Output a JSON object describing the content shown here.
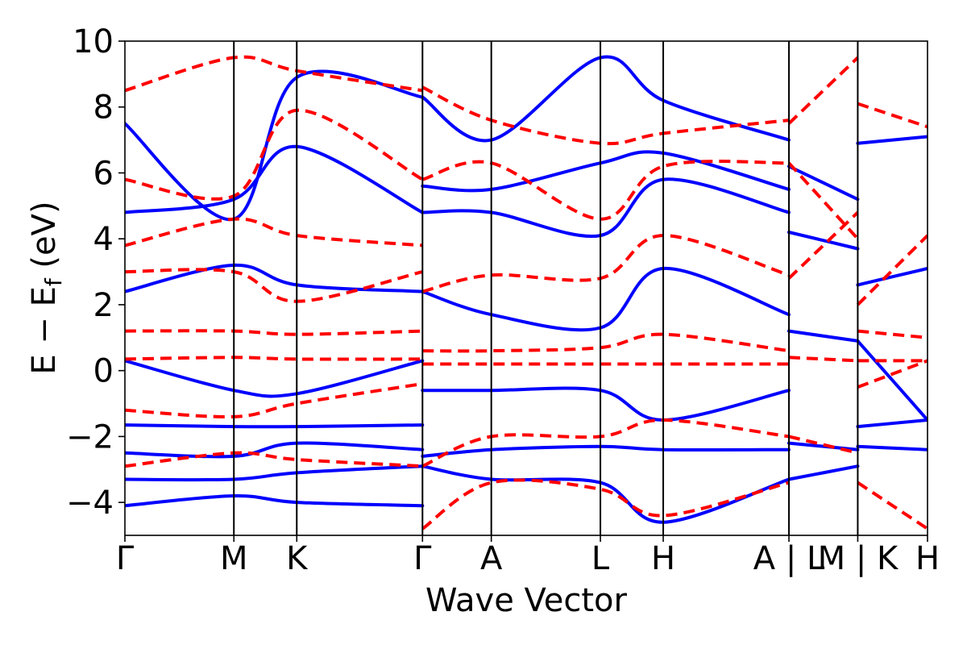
{
  "chart_data": {
    "type": "line",
    "title": "",
    "xlabel": "Wave Vector",
    "ylabel": "E − E",
    "ylabel_subscript": "f",
    "ylabel_unit": " (eV)",
    "ylim": [
      -5,
      10
    ],
    "yticks": [
      -4,
      -2,
      0,
      2,
      4,
      6,
      8,
      10
    ],
    "ytick_labels": [
      "−4",
      "−2",
      "0",
      "2",
      "4",
      "6",
      "8",
      "10"
    ],
    "kpath_labels": [
      "Γ",
      "M",
      "K",
      "Γ",
      "A",
      "L",
      "H",
      "A | L",
      "M | K",
      "H"
    ],
    "kpath_ticks": [
      0,
      1.587,
      2.503,
      4.334,
      5.336,
      6.925,
      7.84,
      9.671,
      10.673,
      11.689
    ],
    "xlim": [
      0,
      11.689
    ],
    "segment_breaks": [
      9.671,
      10.673
    ],
    "grid": false,
    "series": [
      {
        "style": "solid",
        "color": "#0000ff",
        "bands": [
          {
            "x": [
              0,
              1.587,
              2.503,
              4.334
            ],
            "y": [
              -4.1,
              -3.8,
              -4.0,
              -4.1
            ]
          },
          {
            "x": [
              0,
              1.587,
              2.503,
              4.334
            ],
            "y": [
              -3.3,
              -3.3,
              -3.1,
              -2.9
            ]
          },
          {
            "x": [
              0,
              1.587,
              2.503,
              4.334
            ],
            "y": [
              -2.5,
              -2.6,
              -2.2,
              -2.4
            ]
          },
          {
            "x": [
              0,
              1.587,
              2.503,
              4.334
            ],
            "y": [
              -1.65,
              -1.7,
              -1.7,
              -1.65
            ]
          },
          {
            "x": [
              0,
              1.587,
              2.503,
              4.334
            ],
            "y": [
              0.3,
              -0.6,
              -0.7,
              0.3
            ]
          },
          {
            "x": [
              0,
              1.587,
              2.503,
              4.334
            ],
            "y": [
              2.4,
              3.2,
              2.6,
              2.4
            ]
          },
          {
            "x": [
              0,
              1.587,
              2.503,
              4.334
            ],
            "y": [
              4.8,
              5.2,
              6.8,
              4.8
            ]
          },
          {
            "x": [
              0,
              1.587,
              2.503,
              4.334
            ],
            "y": [
              7.5,
              4.6,
              8.9,
              8.3
            ]
          },
          {
            "x": [
              4.334,
              5.336,
              6.925,
              7.84,
              9.671
            ],
            "y": [
              2.4,
              1.7,
              1.3,
              3.1,
              1.7
            ]
          },
          {
            "x": [
              4.334,
              5.336,
              6.925,
              7.84,
              9.671
            ],
            "y": [
              -0.6,
              -0.6,
              -0.6,
              -1.5,
              -0.6
            ]
          },
          {
            "x": [
              4.334,
              5.336,
              6.925,
              7.84,
              9.671
            ],
            "y": [
              -2.9,
              -3.3,
              -3.4,
              -4.6,
              -3.3
            ]
          },
          {
            "x": [
              4.334,
              5.336,
              6.925,
              7.84,
              9.671
            ],
            "y": [
              -2.6,
              -2.4,
              -2.3,
              -2.4,
              -2.4
            ]
          },
          {
            "x": [
              4.334,
              5.336,
              6.925,
              7.84,
              9.671
            ],
            "y": [
              4.8,
              4.8,
              4.1,
              5.8,
              4.8
            ]
          },
          {
            "x": [
              4.334,
              5.336,
              6.925,
              7.84,
              9.671
            ],
            "y": [
              5.6,
              5.5,
              6.3,
              6.6,
              5.5
            ]
          },
          {
            "x": [
              4.334,
              5.336,
              6.925,
              7.84,
              9.671
            ],
            "y": [
              8.3,
              7.0,
              9.5,
              8.2,
              7.0
            ]
          },
          {
            "x": [
              9.671,
              10.673
            ],
            "y": [
              1.2,
              0.9
            ]
          },
          {
            "x": [
              9.671,
              10.673
            ],
            "y": [
              4.2,
              3.7
            ]
          },
          {
            "x": [
              9.671,
              10.673
            ],
            "y": [
              6.2,
              5.2
            ]
          },
          {
            "x": [
              9.671,
              10.673
            ],
            "y": [
              -2.2,
              -2.4
            ]
          },
          {
            "x": [
              9.671,
              10.673
            ],
            "y": [
              -3.3,
              -2.9
            ]
          },
          {
            "x": [
              10.673,
              11.689
            ],
            "y": [
              2.6,
              3.1
            ]
          },
          {
            "x": [
              10.673,
              11.689
            ],
            "y": [
              0.9,
              -1.5
            ]
          },
          {
            "x": [
              10.673,
              11.689
            ],
            "y": [
              -1.7,
              -1.5
            ]
          },
          {
            "x": [
              10.673,
              11.689
            ],
            "y": [
              -2.3,
              -2.4
            ]
          },
          {
            "x": [
              10.673,
              11.689
            ],
            "y": [
              6.9,
              7.1
            ]
          }
        ]
      },
      {
        "style": "dashed",
        "color": "#ff0000",
        "bands": [
          {
            "x": [
              0,
              1.587,
              2.503,
              4.334
            ],
            "y": [
              1.2,
              1.2,
              1.1,
              1.2
            ]
          },
          {
            "x": [
              0,
              1.587,
              2.503,
              4.334
            ],
            "y": [
              0.35,
              0.4,
              0.35,
              0.35
            ]
          },
          {
            "x": [
              0,
              1.587,
              2.503,
              4.334
            ],
            "y": [
              3.0,
              3.0,
              2.1,
              3.0
            ]
          },
          {
            "x": [
              0,
              1.587,
              2.503,
              4.334
            ],
            "y": [
              3.8,
              4.6,
              4.1,
              3.8
            ]
          },
          {
            "x": [
              0,
              1.587,
              2.503,
              4.334
            ],
            "y": [
              5.8,
              5.3,
              7.9,
              5.8
            ]
          },
          {
            "x": [
              0,
              1.587,
              2.503,
              4.334
            ],
            "y": [
              -1.2,
              -1.4,
              -1.0,
              -0.4
            ]
          },
          {
            "x": [
              0,
              1.587,
              2.503,
              4.334
            ],
            "y": [
              -2.9,
              -2.5,
              -2.7,
              -2.9
            ]
          },
          {
            "x": [
              0,
              1.587,
              2.503,
              4.334
            ],
            "y": [
              8.5,
              9.5,
              9.1,
              8.5
            ]
          },
          {
            "x": [
              4.334,
              5.336,
              6.925,
              7.84,
              9.671
            ],
            "y": [
              0.2,
              0.2,
              0.2,
              0.2,
              0.2
            ]
          },
          {
            "x": [
              4.334,
              5.336,
              6.925,
              7.84,
              9.671
            ],
            "y": [
              0.6,
              0.6,
              0.7,
              1.1,
              0.6
            ]
          },
          {
            "x": [
              4.334,
              5.336,
              6.925,
              7.84,
              9.671
            ],
            "y": [
              2.4,
              2.9,
              2.8,
              4.1,
              2.9
            ]
          },
          {
            "x": [
              4.334,
              5.336,
              6.925,
              7.84,
              9.671
            ],
            "y": [
              -2.9,
              -2.0,
              -2.0,
              -1.5,
              -2.0
            ]
          },
          {
            "x": [
              4.334,
              5.336,
              6.925,
              7.84,
              9.671
            ],
            "y": [
              5.8,
              6.3,
              4.6,
              6.2,
              6.3
            ]
          },
          {
            "x": [
              4.334,
              5.336,
              6.925,
              7.84,
              9.671
            ],
            "y": [
              8.6,
              7.6,
              6.9,
              7.2,
              7.6
            ]
          },
          {
            "x": [
              4.334,
              5.336,
              6.925,
              7.84,
              9.671
            ],
            "y": [
              -4.8,
              -3.4,
              -3.6,
              -4.4,
              -3.4
            ]
          },
          {
            "x": [
              9.671,
              10.673
            ],
            "y": [
              0.4,
              0.3
            ]
          },
          {
            "x": [
              9.671,
              10.673
            ],
            "y": [
              2.8,
              4.8
            ]
          },
          {
            "x": [
              9.671,
              10.673
            ],
            "y": [
              6.3,
              4.0
            ]
          },
          {
            "x": [
              9.671,
              10.673
            ],
            "y": [
              -2.0,
              -2.5
            ]
          },
          {
            "x": [
              9.671,
              10.673
            ],
            "y": [
              7.5,
              9.5
            ]
          },
          {
            "x": [
              10.673,
              11.689
            ],
            "y": [
              1.2,
              1.0
            ]
          },
          {
            "x": [
              10.673,
              11.689
            ],
            "y": [
              0.3,
              0.3
            ]
          },
          {
            "x": [
              10.673,
              11.689
            ],
            "y": [
              2.0,
              4.1
            ]
          },
          {
            "x": [
              10.673,
              11.689
            ],
            "y": [
              -0.5,
              0.3
            ]
          },
          {
            "x": [
              10.673,
              11.689
            ],
            "y": [
              8.1,
              7.4
            ]
          },
          {
            "x": [
              10.673,
              11.689
            ],
            "y": [
              -3.4,
              -4.8
            ]
          }
        ]
      }
    ]
  }
}
